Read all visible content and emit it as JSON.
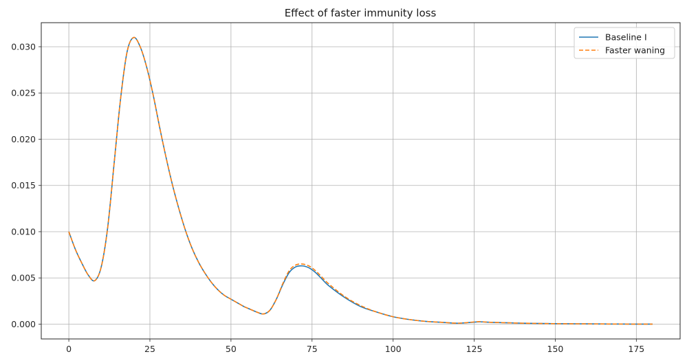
{
  "chart_data": {
    "type": "line",
    "title": "Effect of faster immunity loss",
    "xlabel": "",
    "ylabel": "",
    "xlim": [
      -8.5,
      188.5
    ],
    "ylim": [
      -0.0016,
      0.0326
    ],
    "x_ticks": [
      0,
      25,
      50,
      75,
      100,
      125,
      150,
      175
    ],
    "y_ticks": [
      0.0,
      0.005,
      0.01,
      0.015,
      0.02,
      0.025,
      0.03
    ],
    "y_tick_labels": [
      "0.000",
      "0.005",
      "0.010",
      "0.015",
      "0.020",
      "0.025",
      "0.030"
    ],
    "x_tick_labels": [
      "0",
      "25",
      "50",
      "75",
      "100",
      "125",
      "150",
      "175"
    ],
    "grid": true,
    "legend_position": "top-right",
    "series": [
      {
        "name": "Baseline I",
        "color": "#1f77b4",
        "style": "solid",
        "x": [
          0,
          2,
          4,
          6,
          8,
          10,
          12,
          14,
          16,
          18,
          20,
          22,
          24,
          26,
          28,
          30,
          32,
          34,
          36,
          38,
          40,
          42,
          44,
          46,
          48,
          50,
          52,
          54,
          56,
          58,
          60,
          62,
          64,
          66,
          68,
          70,
          72,
          74,
          76,
          78,
          80,
          85,
          90,
          95,
          100,
          105,
          110,
          115,
          120,
          125,
          127,
          130,
          140,
          150,
          160,
          170,
          180
        ],
        "y": [
          0.01,
          0.0081,
          0.0066,
          0.0053,
          0.0047,
          0.0062,
          0.0105,
          0.0175,
          0.0245,
          0.0295,
          0.031,
          0.03,
          0.0278,
          0.0248,
          0.0213,
          0.018,
          0.015,
          0.0124,
          0.0101,
          0.0082,
          0.0067,
          0.0055,
          0.0045,
          0.0037,
          0.0031,
          0.0027,
          0.0023,
          0.0019,
          0.0016,
          0.0013,
          0.0011,
          0.0015,
          0.0027,
          0.0043,
          0.0056,
          0.0062,
          0.0063,
          0.0061,
          0.0056,
          0.0049,
          0.0042,
          0.0029,
          0.0019,
          0.0013,
          0.0008,
          0.0005,
          0.0003,
          0.0002,
          0.0001,
          0.00022,
          0.00025,
          0.0002,
          0.0001,
          5e-05,
          3e-05,
          1e-05,
          0.0
        ]
      },
      {
        "name": "Faster waning",
        "color": "#ff7f0e",
        "style": "dashed",
        "x": [
          0,
          2,
          4,
          6,
          8,
          10,
          12,
          14,
          16,
          18,
          20,
          22,
          24,
          26,
          28,
          30,
          32,
          34,
          36,
          38,
          40,
          42,
          44,
          46,
          48,
          50,
          52,
          54,
          56,
          58,
          60,
          62,
          64,
          66,
          68,
          70,
          72,
          74,
          76,
          78,
          80,
          85,
          90,
          95,
          100,
          105,
          110,
          115,
          120,
          125,
          127,
          130,
          140,
          150,
          160,
          170,
          180
        ],
        "y": [
          0.01,
          0.0081,
          0.0066,
          0.0053,
          0.0047,
          0.0062,
          0.0105,
          0.0175,
          0.0245,
          0.0295,
          0.031,
          0.03,
          0.0278,
          0.0248,
          0.0213,
          0.018,
          0.015,
          0.0124,
          0.0101,
          0.0082,
          0.0067,
          0.0055,
          0.0045,
          0.0037,
          0.0031,
          0.0027,
          0.0023,
          0.0019,
          0.0016,
          0.0013,
          0.0011,
          0.0015,
          0.0027,
          0.0044,
          0.0058,
          0.0064,
          0.0065,
          0.0063,
          0.0058,
          0.0051,
          0.0044,
          0.003,
          0.002,
          0.0013,
          0.0008,
          0.0005,
          0.0003,
          0.0002,
          0.0001,
          0.00024,
          0.00027,
          0.0002,
          0.0001,
          5e-05,
          3e-05,
          1e-05,
          0.0
        ]
      }
    ]
  }
}
